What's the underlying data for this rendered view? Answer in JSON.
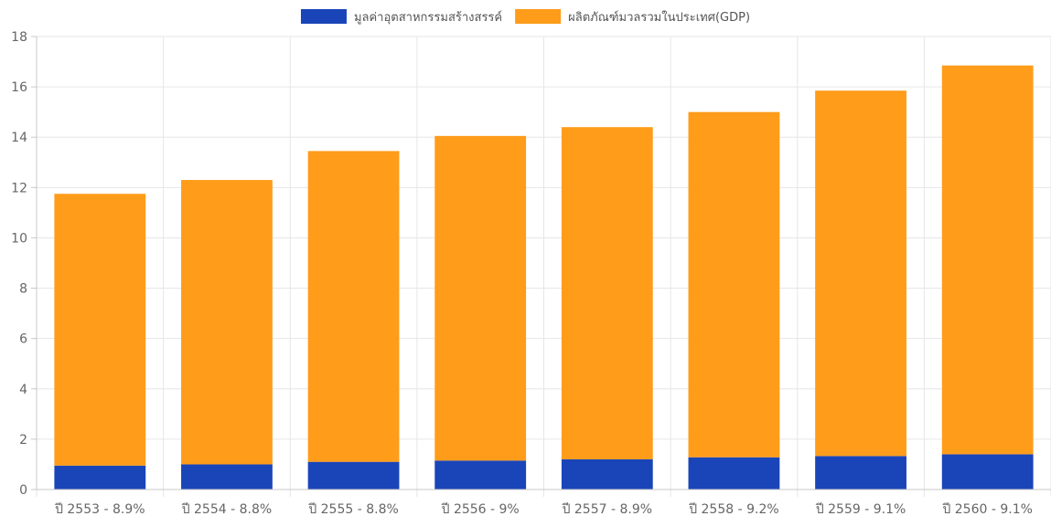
{
  "chart_data": {
    "type": "bar",
    "stacked": true,
    "categories": [
      "ปี 2553 - 8.9%",
      "ปี 2554 - 8.8%",
      "ปี 2555 - 8.8%",
      "ปี 2556 - 9%",
      "ปี 2557 - 8.9%",
      "ปี 2558 - 9.2%",
      "ปี 2559 - 9.1%",
      "ปี 2560 - 9.1%"
    ],
    "series": [
      {
        "name": "มูลค่าอุตสาหกรรมสร้างสรรค์",
        "color": "#1a45b8",
        "values": [
          0.95,
          1.0,
          1.1,
          1.15,
          1.2,
          1.28,
          1.33,
          1.4
        ]
      },
      {
        "name": "ผลิตภัณฑ์มวลรวมในประเทศ(GDP)",
        "color": "#ff9c1a",
        "values": [
          10.8,
          11.3,
          12.35,
          12.9,
          13.2,
          13.72,
          14.52,
          15.45
        ]
      }
    ],
    "yticks": [
      "0",
      "2",
      "4",
      "6",
      "8",
      "10",
      "12",
      "14",
      "16",
      "18"
    ],
    "ylim": [
      0,
      18
    ],
    "grid": true,
    "legend": "top-center"
  }
}
